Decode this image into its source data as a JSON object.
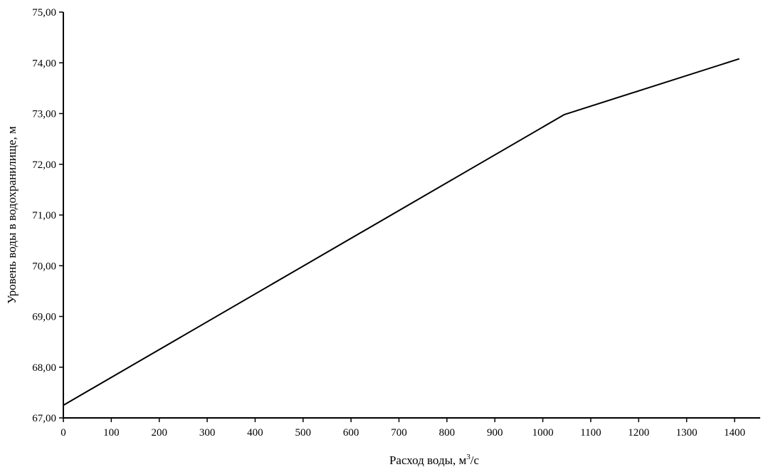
{
  "chart_data": {
    "type": "line",
    "title": "",
    "xlabel": "Расход воды, м",
    "xlabel_sup": "3",
    "xlabel_tail": "/с",
    "ylabel": "Уровень воды в водохранилище, м",
    "xlim": [
      0,
      1450
    ],
    "ylim": [
      67.0,
      75.0
    ],
    "x_ticks": [
      0,
      100,
      200,
      300,
      400,
      500,
      600,
      700,
      800,
      900,
      1000,
      1100,
      1200,
      1300,
      1400
    ],
    "x_tick_labels": [
      "0",
      "100",
      "200",
      "300",
      "400",
      "500",
      "600",
      "700",
      "800",
      "900",
      "1000",
      "1100",
      "1200",
      "1300",
      "1400"
    ],
    "y_ticks": [
      67.0,
      68.0,
      69.0,
      70.0,
      71.0,
      72.0,
      73.0,
      74.0,
      75.0
    ],
    "y_tick_labels": [
      "67,00",
      "68,00",
      "69,00",
      "70,00",
      "71,00",
      "72,00",
      "73,00",
      "74,00",
      "75,00"
    ],
    "grid": false,
    "legend": "none",
    "line_color": "#000000",
    "series": [
      {
        "x": [
          0,
          1045,
          1410
        ],
        "y": [
          67.25,
          72.98,
          74.08
        ]
      }
    ]
  }
}
